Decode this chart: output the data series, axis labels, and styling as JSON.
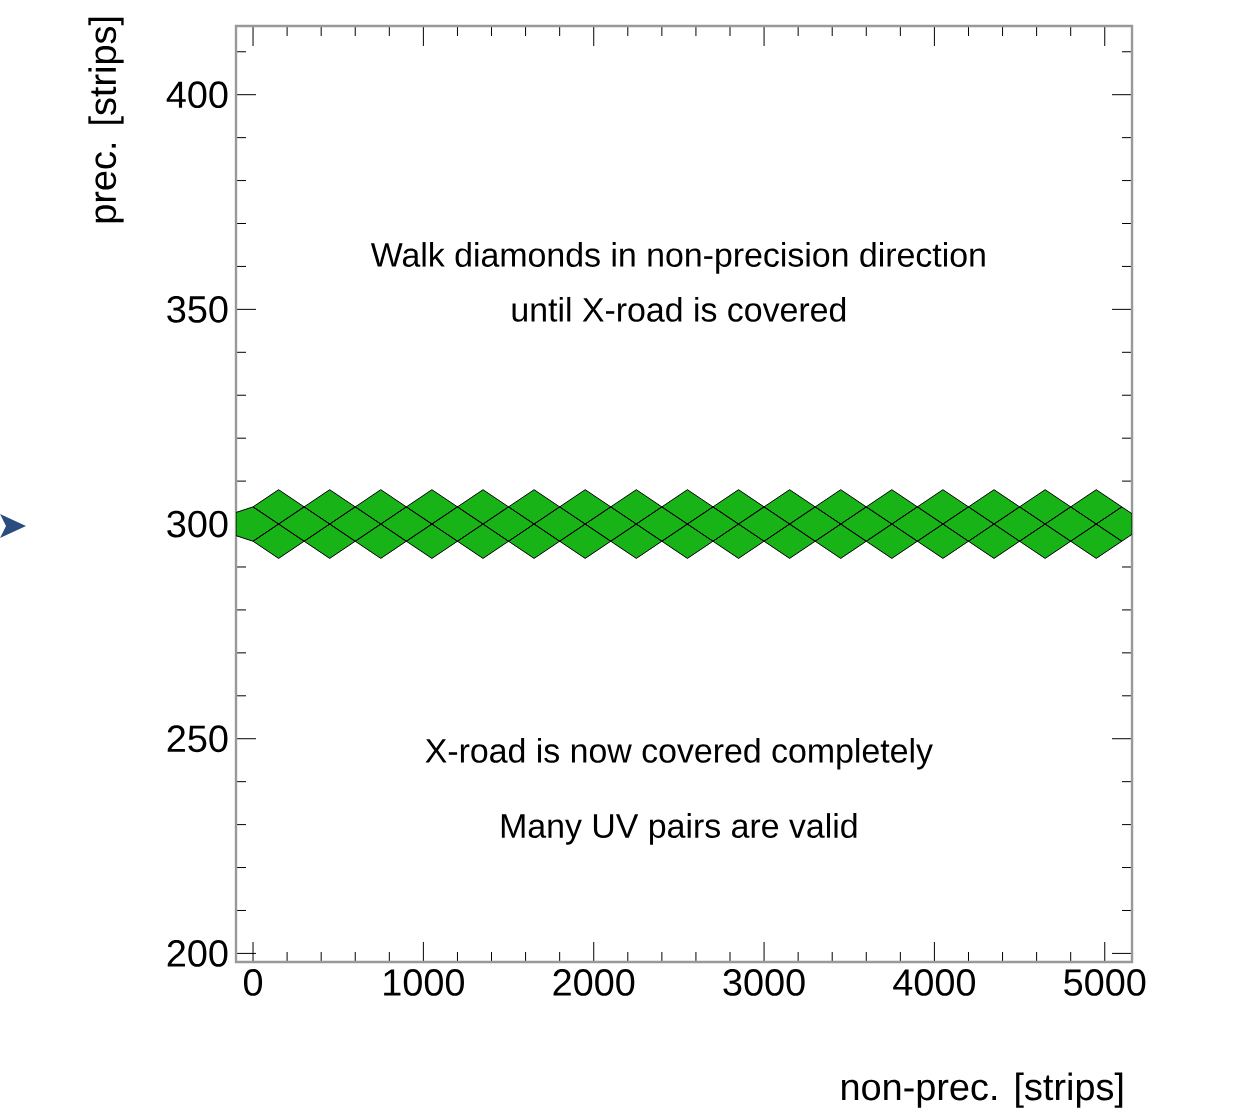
{
  "chart_data": {
    "type": "area",
    "xlabel": "non-prec. [strips]",
    "ylabel": "prec. [strips]",
    "annotations": [
      "Walk diamonds in non-precision direction",
      "until X-road is covered",
      "X-road is now covered completely",
      "Many UV pairs are valid"
    ],
    "xlim": [
      -100,
      5160
    ],
    "ylim": [
      198,
      416
    ],
    "xticks": [
      0,
      1000,
      2000,
      3000,
      4000,
      5000,
      {
        "value": 200,
        "label": null
      },
      {
        "value": 400,
        "label": null
      },
      {
        "value": 600,
        "label": null
      },
      {
        "value": 800,
        "label": null
      },
      {
        "value": 1200,
        "label": null
      },
      {
        "value": 1400,
        "label": null
      },
      {
        "value": 1600,
        "label": null
      },
      {
        "value": 1800,
        "label": null
      },
      {
        "value": 2200,
        "label": null
      },
      {
        "value": 2400,
        "label": null
      },
      {
        "value": 2600,
        "label": null
      },
      {
        "value": 2800,
        "label": null
      },
      {
        "value": 3200,
        "label": null
      },
      {
        "value": 3400,
        "label": null
      },
      {
        "value": 3600,
        "label": null
      },
      {
        "value": 3800,
        "label": null
      },
      {
        "value": 4200,
        "label": null
      },
      {
        "value": 4400,
        "label": null
      },
      {
        "value": 4600,
        "label": null
      },
      {
        "value": 4800,
        "label": null
      }
    ],
    "yticks": [
      200,
      250,
      300,
      350,
      400,
      {
        "value": 210,
        "label": null
      },
      {
        "value": 220,
        "label": null
      },
      {
        "value": 230,
        "label": null
      },
      {
        "value": 240,
        "label": null
      },
      {
        "value": 260,
        "label": null
      },
      {
        "value": 270,
        "label": null
      },
      {
        "value": 280,
        "label": null
      },
      {
        "value": 290,
        "label": null
      },
      {
        "value": 310,
        "label": null
      },
      {
        "value": 320,
        "label": null
      },
      {
        "value": 330,
        "label": null
      },
      {
        "value": 340,
        "label": null
      },
      {
        "value": 360,
        "label": null
      },
      {
        "value": 370,
        "label": null
      },
      {
        "value": 380,
        "label": null
      },
      {
        "value": 390,
        "label": null
      },
      {
        "value": 410,
        "label": null
      }
    ],
    "series": [
      {
        "color": "#17b317",
        "x": [
          0,
          150,
          300,
          150,
          0,
          null,
          300,
          450,
          600,
          450,
          300,
          null,
          600,
          750,
          900,
          750,
          600,
          null,
          900,
          1050,
          1200,
          1050,
          900,
          null,
          1200,
          1350,
          1500,
          1350,
          1200,
          null,
          1500,
          1650,
          1800,
          1650,
          1500,
          null,
          1800,
          1950,
          2100,
          1950,
          1800,
          null,
          2100,
          2250,
          2400,
          2250,
          2100,
          null,
          2400,
          2550,
          2700,
          2550,
          2400,
          null,
          2700,
          2850,
          3000,
          2850,
          2700,
          null,
          3000,
          3150,
          3300,
          3150,
          3000,
          null,
          3300,
          3450,
          3600,
          3450,
          3300,
          null,
          3600,
          3750,
          3900,
          3750,
          3600,
          null,
          3900,
          4050,
          4200,
          4050,
          3900,
          null,
          4200,
          4350,
          4500,
          4350,
          4200,
          null,
          4500,
          4650,
          4800,
          4650,
          4500,
          null,
          4800,
          4950,
          5100,
          4950,
          4800,
          null,
          -100,
          0,
          150,
          0,
          -100,
          null,
          150,
          300,
          450,
          300,
          150,
          null,
          450,
          600,
          750,
          600,
          450,
          null,
          750,
          900,
          1050,
          900,
          750,
          null,
          1050,
          1200,
          1350,
          1200,
          1050,
          null,
          1350,
          1500,
          1650,
          1500,
          1350,
          null,
          1650,
          1800,
          1950,
          1800,
          1650,
          null,
          1950,
          2100,
          2250,
          2100,
          1950,
          null,
          2250,
          2400,
          2550,
          2400,
          2250,
          null,
          2550,
          2700,
          2850,
          2700,
          2550,
          null,
          2850,
          3000,
          3150,
          3000,
          2850,
          null,
          3150,
          3300,
          3450,
          3300,
          3150,
          null,
          3450,
          3600,
          3750,
          3600,
          3450,
          null,
          3750,
          3900,
          4050,
          3900,
          3750,
          null,
          4050,
          4200,
          4350,
          4200,
          4050,
          null,
          4350,
          4500,
          4650,
          4500,
          4350,
          null,
          4650,
          4800,
          4950,
          4800,
          4650,
          null,
          4950,
          5100,
          5160,
          5160,
          5100,
          4950,
          null,
          0,
          150,
          300,
          150,
          0,
          null,
          300,
          450,
          600,
          450,
          300,
          null,
          600,
          750,
          900,
          750,
          600,
          null,
          900,
          1050,
          1200,
          1050,
          900,
          null,
          1200,
          1350,
          1500,
          1350,
          1200,
          null,
          1500,
          1650,
          1800,
          1650,
          1500,
          null,
          1800,
          1950,
          2100,
          1950,
          1800,
          null,
          2100,
          2250,
          2400,
          2250,
          2100,
          null,
          2400,
          2550,
          2700,
          2550,
          2400,
          null,
          2700,
          2850,
          3000,
          2850,
          2700,
          null,
          3000,
          3150,
          3300,
          3150,
          3000,
          null,
          3300,
          3450,
          3600,
          3450,
          3300,
          null,
          3600,
          3750,
          3900,
          3750,
          3600,
          null,
          3900,
          4050,
          4200,
          4050,
          3900,
          null,
          4200,
          4350,
          4500,
          4350,
          4200,
          null,
          4500,
          4650,
          4800,
          4650,
          4500,
          null,
          4800,
          4950,
          5100,
          4950,
          4800
        ],
        "values": [
          304,
          308,
          304,
          300,
          304,
          null,
          304,
          308,
          304,
          300,
          304,
          null,
          304,
          308,
          304,
          300,
          304,
          null,
          304,
          308,
          304,
          300,
          304,
          null,
          304,
          308,
          304,
          300,
          304,
          null,
          304,
          308,
          304,
          300,
          304,
          null,
          304,
          308,
          304,
          300,
          304,
          null,
          304,
          308,
          304,
          300,
          304,
          null,
          304,
          308,
          304,
          300,
          304,
          null,
          304,
          308,
          304,
          300,
          304,
          null,
          304,
          308,
          304,
          300,
          304,
          null,
          304,
          308,
          304,
          300,
          304,
          null,
          304,
          308,
          304,
          300,
          304,
          null,
          304,
          308,
          304,
          300,
          304,
          null,
          304,
          308,
          304,
          300,
          304,
          null,
          304,
          308,
          304,
          300,
          304,
          null,
          304,
          308,
          304,
          300,
          304,
          null,
          302.7,
          304,
          300,
          296,
          297.3,
          null,
          300,
          304,
          300,
          296,
          300,
          null,
          300,
          304,
          300,
          296,
          300,
          null,
          300,
          304,
          300,
          296,
          300,
          null,
          300,
          304,
          300,
          296,
          300,
          null,
          300,
          304,
          300,
          296,
          300,
          null,
          300,
          304,
          300,
          296,
          300,
          null,
          300,
          304,
          300,
          296,
          300,
          null,
          300,
          304,
          300,
          296,
          300,
          null,
          300,
          304,
          300,
          296,
          300,
          null,
          300,
          304,
          300,
          296,
          300,
          null,
          300,
          304,
          300,
          296,
          300,
          null,
          300,
          304,
          300,
          296,
          300,
          null,
          300,
          304,
          300,
          296,
          300,
          null,
          300,
          304,
          300,
          296,
          300,
          null,
          300,
          304,
          300,
          296,
          300,
          null,
          300,
          304,
          300,
          296,
          300,
          null,
          300,
          304,
          302.4,
          297.6,
          296,
          300,
          null,
          296,
          300,
          296,
          292,
          296,
          null,
          296,
          300,
          296,
          292,
          296,
          null,
          296,
          300,
          296,
          292,
          296,
          null,
          296,
          300,
          296,
          292,
          296,
          null,
          296,
          300,
          296,
          292,
          296,
          null,
          296,
          300,
          296,
          292,
          296,
          null,
          296,
          300,
          296,
          292,
          296,
          null,
          296,
          300,
          296,
          292,
          296,
          null,
          296,
          300,
          296,
          292,
          296,
          null,
          296,
          300,
          296,
          292,
          296,
          null,
          296,
          300,
          296,
          292,
          296,
          null,
          296,
          300,
          296,
          292,
          296,
          null,
          296,
          300,
          296,
          292,
          296,
          null,
          296,
          300,
          296,
          292,
          296,
          null,
          296,
          300,
          296,
          292,
          296,
          null,
          296,
          300,
          296,
          292,
          296,
          null,
          296,
          300,
          296,
          292,
          296
        ]
      }
    ]
  }
}
